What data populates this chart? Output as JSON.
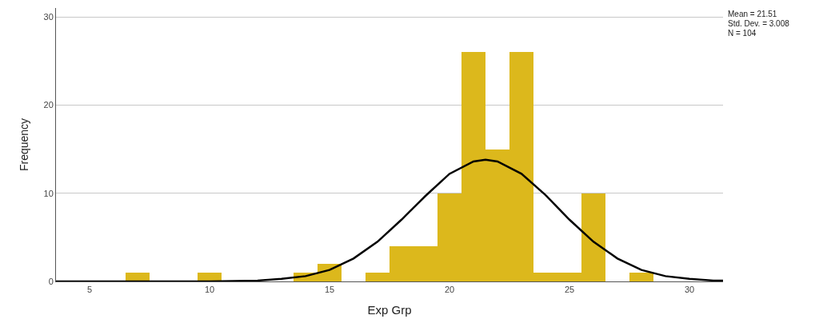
{
  "chart_data": {
    "type": "histogram",
    "xlabel": "Exp Grp",
    "ylabel": "Frequency",
    "annotations": [
      "Mean = 21.51",
      "Std. Dev. = 3.008",
      "N = 104"
    ],
    "series": [
      {
        "color": "#dcb81c",
        "bins": [
          6.5,
          7.5,
          8.5,
          9.5,
          10.5,
          11.5,
          12.5,
          13.5,
          14.5,
          15.5,
          16.5,
          17.5,
          18.5,
          19.5,
          20.5,
          21.5,
          22.5,
          23.5,
          24.5,
          25.5,
          26.5,
          27.5,
          28.5
        ],
        "values": [
          1,
          0,
          0,
          1,
          0,
          0,
          0,
          1,
          2,
          0,
          1,
          4,
          4,
          10,
          26,
          15,
          26,
          1,
          1,
          10,
          0,
          1
        ]
      },
      {
        "type": "line",
        "color": "#000000",
        "x": [
          3.6,
          8,
          10,
          12,
          13,
          14,
          15,
          16,
          17,
          18,
          19,
          20,
          21,
          21.5,
          22,
          23,
          24,
          25,
          26,
          27,
          28,
          29,
          30,
          31,
          31.4
        ],
        "values": [
          0,
          0,
          0,
          0.1,
          0.3,
          0.6,
          1.3,
          2.6,
          4.5,
          7.0,
          9.7,
          12.2,
          13.6,
          13.8,
          13.6,
          12.2,
          9.8,
          7.0,
          4.5,
          2.6,
          1.3,
          0.6,
          0.3,
          0.1,
          0.1
        ]
      }
    ],
    "xlim": [
      3.6,
      31.4
    ],
    "xticks": [
      5,
      10,
      15,
      20,
      25,
      30
    ],
    "ylim": [
      0,
      31
    ],
    "yticks": [
      0,
      10,
      20,
      30
    ],
    "grid": "y"
  }
}
